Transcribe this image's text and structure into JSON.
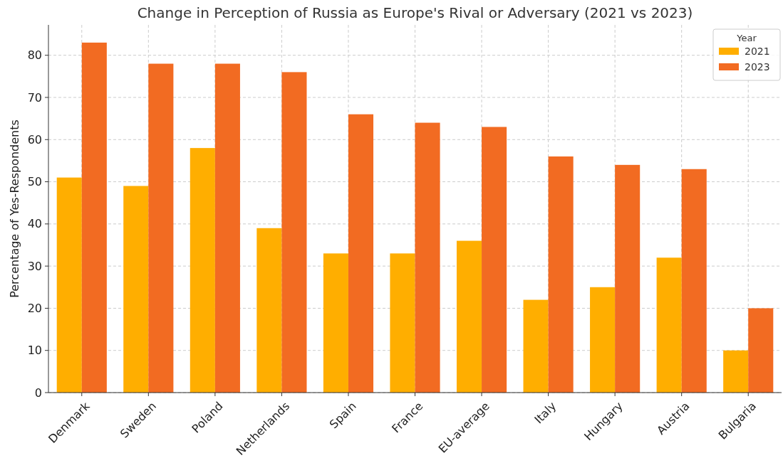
{
  "chart_data": {
    "type": "bar",
    "title": "Change in Perception of Russia as Europe's Rival or Adversary (2021 vs 2023)",
    "ylabel": "Percentage of Yes-Respondents",
    "legend_title": "Year",
    "categories": [
      "Denmark",
      "Sweden",
      "Poland",
      "Netherlands",
      "Spain",
      "France",
      "EU-average",
      "Italy",
      "Hungary",
      "Austria",
      "Bulgaria"
    ],
    "series": [
      {
        "name": "2021",
        "color": "#ffae00",
        "values": [
          51,
          49,
          58,
          39,
          33,
          33,
          36,
          22,
          25,
          32,
          10
        ]
      },
      {
        "name": "2023",
        "color": "#f26b22",
        "values": [
          83,
          78,
          78,
          76,
          66,
          64,
          63,
          56,
          54,
          53,
          20
        ]
      }
    ],
    "ylim": [
      0,
      87.2
    ],
    "yticks": [
      0,
      10,
      20,
      30,
      40,
      50,
      60,
      70,
      80
    ],
    "grid": true,
    "legend": "top right"
  }
}
